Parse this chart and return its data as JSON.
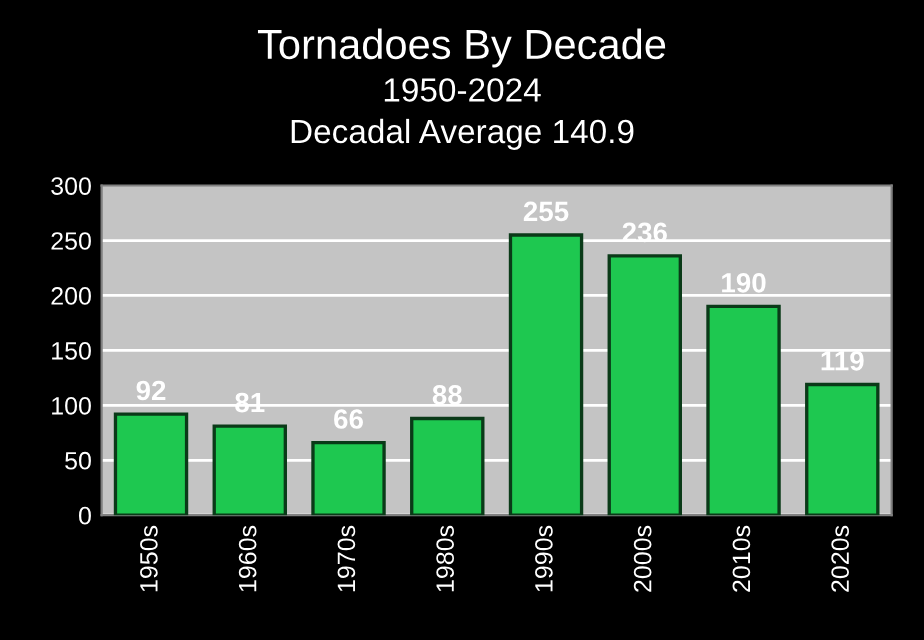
{
  "chart_data": {
    "type": "bar",
    "title": "Tornadoes By Decade",
    "subtitle": "1950-2024",
    "annotations": [
      "Decadal Average 140.9"
    ],
    "categories": [
      "1950s",
      "1960s",
      "1970s",
      "1980s",
      "1990s",
      "2000s",
      "2010s",
      "2020s"
    ],
    "values": [
      92,
      81,
      66,
      88,
      255,
      236,
      190,
      119
    ],
    "color": "#1ec850",
    "ylim": [
      0,
      300
    ],
    "yticks": [
      0,
      50,
      100,
      150,
      200,
      250,
      300
    ],
    "grid": "y",
    "data_labels": true
  }
}
